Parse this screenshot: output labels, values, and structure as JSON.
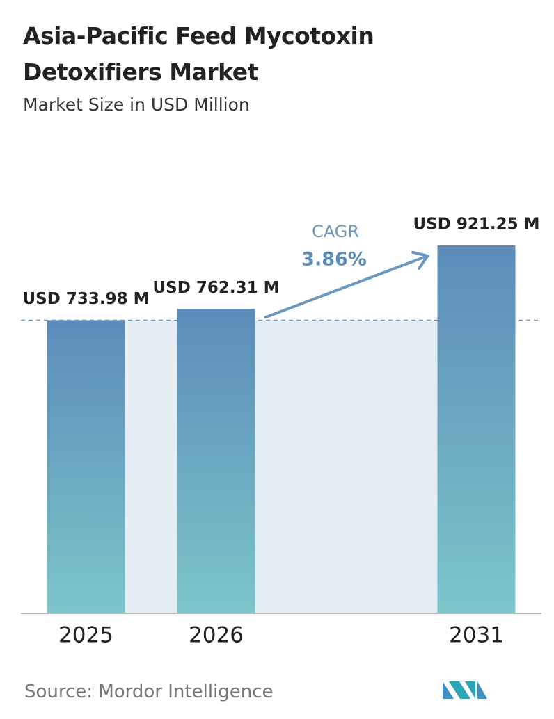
{
  "chart_data": {
    "type": "bar",
    "title": "Asia-Pacific Feed Mycotoxin Detoxifiers Market",
    "subtitle": "Market Size in USD Million",
    "categories": [
      "2025",
      "2026",
      null,
      "2031"
    ],
    "values": [
      733.98,
      762.31,
      null,
      921.25
    ],
    "value_labels": [
      "USD 733.98 M",
      "USD 762.31 M",
      null,
      "USD 921.25 M"
    ],
    "gradient": [
      "#5b8cba",
      "#7cc5c9"
    ],
    "cagr": {
      "title": "CAGR",
      "value": 3.86,
      "label": "3.86%"
    },
    "source": "Source:  Mordor Intelligence"
  }
}
